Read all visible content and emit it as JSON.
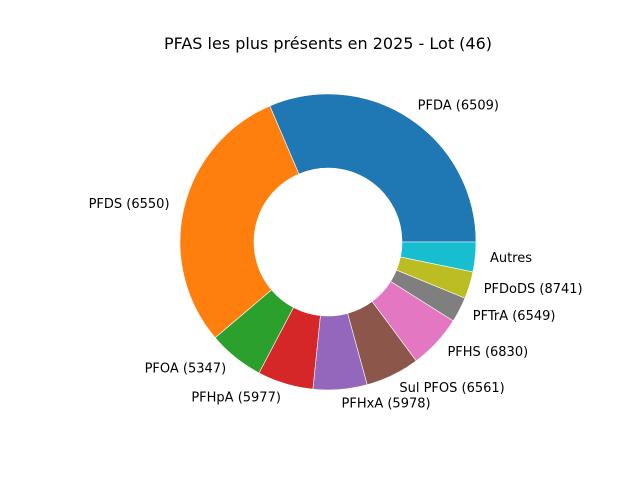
{
  "chart_data": {
    "type": "pie",
    "style": "donut",
    "title": "PFAS les plus présents en 2025 - Lot (46)",
    "start_angle_deg": 0,
    "direction": "counterclockwise",
    "slices": [
      {
        "label": "PFDA (6509)",
        "value": 32.0,
        "color": "#1f77b4"
      },
      {
        "label": "PFDS (6550)",
        "value": 30.3,
        "color": "#ff7f0e"
      },
      {
        "label": "PFOA (5347)",
        "value": 6.2,
        "color": "#2ca02c"
      },
      {
        "label": "PFHpA (5977)",
        "value": 6.2,
        "color": "#d62728"
      },
      {
        "label": "PFHxA (5978)",
        "value": 6.0,
        "color": "#9467bd"
      },
      {
        "label": "Sul PFOS (6561)",
        "value": 6.0,
        "color": "#8c564b"
      },
      {
        "label": "PFHS (6830)",
        "value": 6.0,
        "color": "#e377c2"
      },
      {
        "label": "PFTrA (6549)",
        "value": 2.8,
        "color": "#7f7f7f"
      },
      {
        "label": "PFDoDS (8741)",
        "value": 3.0,
        "color": "#bcbd22"
      },
      {
        "label": "Autres",
        "value": 3.3,
        "color": "#17becf"
      }
    ]
  }
}
